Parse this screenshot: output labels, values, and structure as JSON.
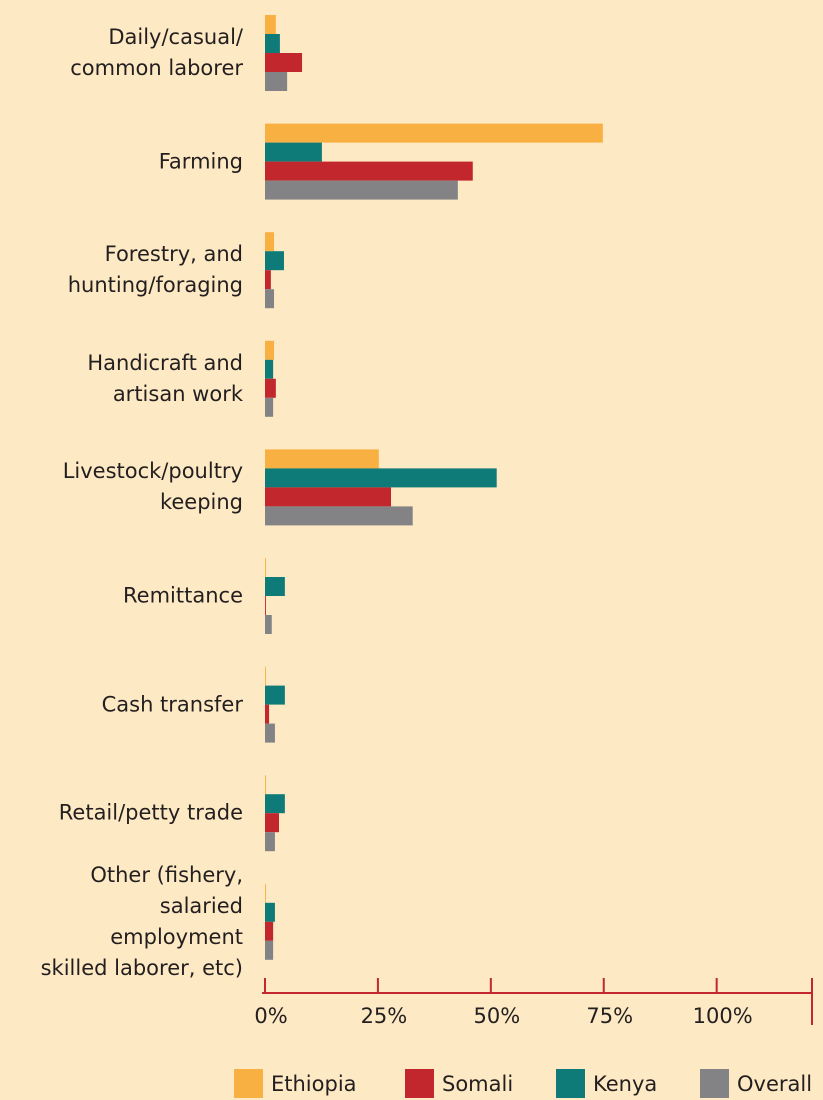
{
  "chart_data": {
    "type": "bar",
    "orientation": "horizontal",
    "categories": [
      "Daily/casual/\ncommon laborer",
      "Farming",
      "Forestry, and\nhunting/foraging",
      "Handicraft and\nartisan work",
      "Livestock/poultry\nkeeping",
      "Remittance",
      "Cash transfer",
      "Retail/petty trade",
      "Other (fishery,\nsalaried\nemployment\nskilled laborer, etc)"
    ],
    "series": [
      {
        "name": "Ethiopia",
        "color": "#f9b042",
        "values": [
          2.4,
          74.8,
          2,
          2,
          25.2,
          0.2,
          0.2,
          0.2,
          0.2
        ]
      },
      {
        "name": "Somali",
        "color": "#c1272d",
        "values": [
          8.2,
          46,
          1.3,
          2.4,
          27.9,
          0.2,
          0.9,
          3.1,
          1.8
        ]
      },
      {
        "name": "Kenya",
        "color": "#0f7b78",
        "values": [
          3.3,
          12.6,
          4.2,
          1.8,
          51.3,
          4.4,
          4.4,
          4.4,
          2.2
        ]
      },
      {
        "name": "Overall",
        "color": "#838386",
        "values": [
          4.9,
          42.7,
          2,
          1.8,
          32.7,
          1.5,
          2.2,
          2.2,
          1.8
        ]
      }
    ],
    "xlim": [
      0,
      120
    ],
    "xticks": [
      {
        "value": 0,
        "label": "0%"
      },
      {
        "value": 25,
        "label": "25%"
      },
      {
        "value": 50,
        "label": "50%"
      },
      {
        "value": 75,
        "label": "75%"
      },
      {
        "value": 100,
        "label": "100%"
      }
    ],
    "axis_color": "#c1272d",
    "legend": "bottom"
  }
}
